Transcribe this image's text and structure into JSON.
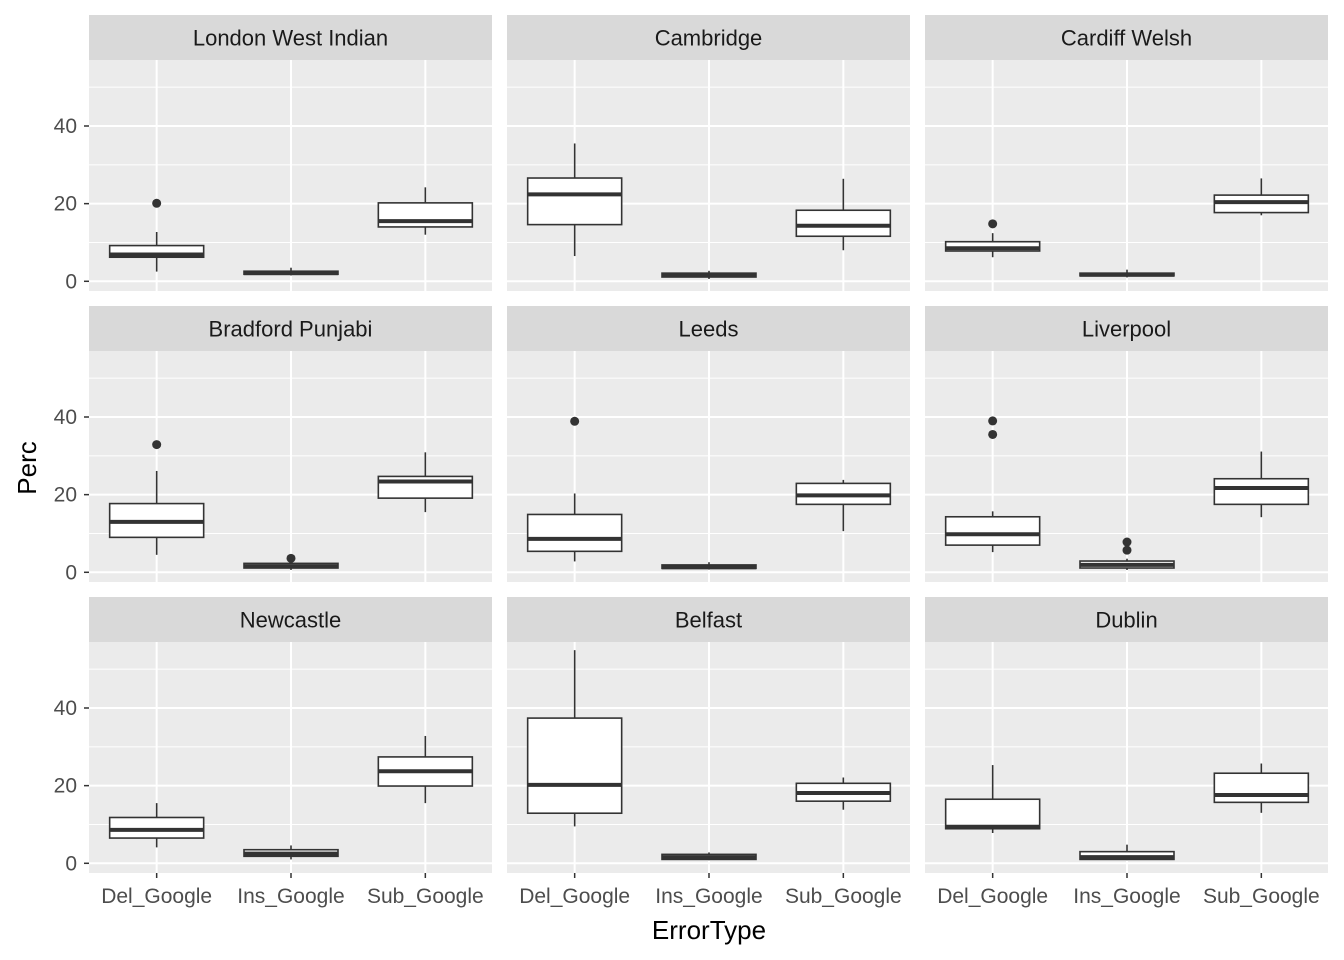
{
  "chart_data": {
    "type": "boxplot",
    "xlabel": "ErrorType",
    "ylabel": "Perc",
    "categories": [
      "Del_Google",
      "Ins_Google",
      "Sub_Google"
    ],
    "ylim": [
      -2.5,
      57
    ],
    "y_ticks": [
      0,
      20,
      40
    ],
    "y_tick_labels": [
      "0",
      "20",
      "40"
    ],
    "grid": true,
    "colors": {
      "panel_bg": "#ebebeb",
      "strip_bg": "#d9d9d9",
      "grid": "#ffffff",
      "box_fill": "#ffffff",
      "box_stroke": "#333333"
    },
    "panels": [
      {
        "title": "London West Indian",
        "boxes": [
          {
            "category": "Del_Google",
            "whisker_low": 2.5,
            "q1": 6.2,
            "median": 6.9,
            "q3": 9.2,
            "whisker_high": 12.7,
            "outliers": [
              20.1
            ]
          },
          {
            "category": "Ins_Google",
            "whisker_low": 1.5,
            "q1": 1.8,
            "median": 2.1,
            "q3": 2.6,
            "whisker_high": 3.5,
            "outliers": []
          },
          {
            "category": "Sub_Google",
            "whisker_low": 12.0,
            "q1": 14.0,
            "median": 15.5,
            "q3": 20.2,
            "whisker_high": 24.2,
            "outliers": []
          }
        ]
      },
      {
        "title": "Cambridge",
        "boxes": [
          {
            "category": "Del_Google",
            "whisker_low": 6.5,
            "q1": 14.6,
            "median": 22.4,
            "q3": 26.6,
            "whisker_high": 35.5,
            "outliers": []
          },
          {
            "category": "Ins_Google",
            "whisker_low": 0.6,
            "q1": 1.1,
            "median": 1.5,
            "q3": 2.1,
            "whisker_high": 2.7,
            "outliers": []
          },
          {
            "category": "Sub_Google",
            "whisker_low": 8.0,
            "q1": 11.6,
            "median": 14.3,
            "q3": 18.3,
            "whisker_high": 26.4,
            "outliers": []
          }
        ]
      },
      {
        "title": "Cardiff Welsh",
        "boxes": [
          {
            "category": "Del_Google",
            "whisker_low": 6.2,
            "q1": 7.8,
            "median": 8.5,
            "q3": 10.2,
            "whisker_high": 12.4,
            "outliers": [
              14.8
            ]
          },
          {
            "category": "Ins_Google",
            "whisker_low": 1.0,
            "q1": 1.4,
            "median": 1.7,
            "q3": 2.1,
            "whisker_high": 3.0,
            "outliers": []
          },
          {
            "category": "Sub_Google",
            "whisker_low": 17.0,
            "q1": 17.7,
            "median": 20.4,
            "q3": 22.2,
            "whisker_high": 26.5,
            "outliers": []
          }
        ]
      },
      {
        "title": "Bradford Punjabi",
        "boxes": [
          {
            "category": "Del_Google",
            "whisker_low": 4.5,
            "q1": 9.0,
            "median": 13.0,
            "q3": 17.7,
            "whisker_high": 26.1,
            "outliers": [
              32.9
            ]
          },
          {
            "category": "Ins_Google",
            "whisker_low": 0.6,
            "q1": 1.1,
            "median": 1.6,
            "q3": 2.3,
            "whisker_high": 2.8,
            "outliers": [
              3.6
            ]
          },
          {
            "category": "Sub_Google",
            "whisker_low": 15.5,
            "q1": 19.1,
            "median": 23.4,
            "q3": 24.7,
            "whisker_high": 30.9,
            "outliers": []
          }
        ]
      },
      {
        "title": "Leeds",
        "boxes": [
          {
            "category": "Del_Google",
            "whisker_low": 2.8,
            "q1": 5.4,
            "median": 8.6,
            "q3": 14.9,
            "whisker_high": 20.3,
            "outliers": [
              38.9
            ]
          },
          {
            "category": "Ins_Google",
            "whisker_low": 0.7,
            "q1": 1.0,
            "median": 1.3,
            "q3": 1.9,
            "whisker_high": 2.6,
            "outliers": []
          },
          {
            "category": "Sub_Google",
            "whisker_low": 10.6,
            "q1": 17.5,
            "median": 19.8,
            "q3": 22.9,
            "whisker_high": 23.8,
            "outliers": []
          }
        ]
      },
      {
        "title": "Liverpool",
        "boxes": [
          {
            "category": "Del_Google",
            "whisker_low": 5.2,
            "q1": 7.0,
            "median": 9.8,
            "q3": 14.3,
            "whisker_high": 15.7,
            "outliers": [
              39.0,
              35.5
            ]
          },
          {
            "category": "Ins_Google",
            "whisker_low": 0.6,
            "q1": 1.1,
            "median": 1.9,
            "q3": 2.9,
            "whisker_high": 3.5,
            "outliers": [
              7.8,
              5.7
            ]
          },
          {
            "category": "Sub_Google",
            "whisker_low": 14.2,
            "q1": 17.5,
            "median": 21.7,
            "q3": 24.1,
            "whisker_high": 31.1,
            "outliers": []
          }
        ]
      },
      {
        "title": "Newcastle",
        "boxes": [
          {
            "category": "Del_Google",
            "whisker_low": 4.1,
            "q1": 6.5,
            "median": 8.6,
            "q3": 11.8,
            "whisker_high": 15.5,
            "outliers": []
          },
          {
            "category": "Ins_Google",
            "whisker_low": 1.0,
            "q1": 1.8,
            "median": 2.5,
            "q3": 3.5,
            "whisker_high": 4.6,
            "outliers": []
          },
          {
            "category": "Sub_Google",
            "whisker_low": 15.5,
            "q1": 19.9,
            "median": 23.7,
            "q3": 27.4,
            "whisker_high": 32.8,
            "outliers": []
          }
        ]
      },
      {
        "title": "Belfast",
        "boxes": [
          {
            "category": "Del_Google",
            "whisker_low": 9.5,
            "q1": 12.9,
            "median": 20.2,
            "q3": 37.4,
            "whisker_high": 54.9,
            "outliers": []
          },
          {
            "category": "Ins_Google",
            "whisker_low": 0.8,
            "q1": 1.0,
            "median": 1.6,
            "q3": 2.3,
            "whisker_high": 2.8,
            "outliers": []
          },
          {
            "category": "Sub_Google",
            "whisker_low": 13.8,
            "q1": 16.0,
            "median": 18.1,
            "q3": 20.6,
            "whisker_high": 22.1,
            "outliers": []
          }
        ]
      },
      {
        "title": "Dublin",
        "boxes": [
          {
            "category": "Del_Google",
            "whisker_low": 7.8,
            "q1": 8.9,
            "median": 9.4,
            "q3": 16.5,
            "whisker_high": 25.3,
            "outliers": []
          },
          {
            "category": "Ins_Google",
            "whisker_low": 0.8,
            "q1": 1.0,
            "median": 1.6,
            "q3": 3.0,
            "whisker_high": 4.8,
            "outliers": []
          },
          {
            "category": "Sub_Google",
            "whisker_low": 13.0,
            "q1": 15.7,
            "median": 17.6,
            "q3": 23.2,
            "whisker_high": 25.7,
            "outliers": []
          }
        ]
      }
    ]
  }
}
